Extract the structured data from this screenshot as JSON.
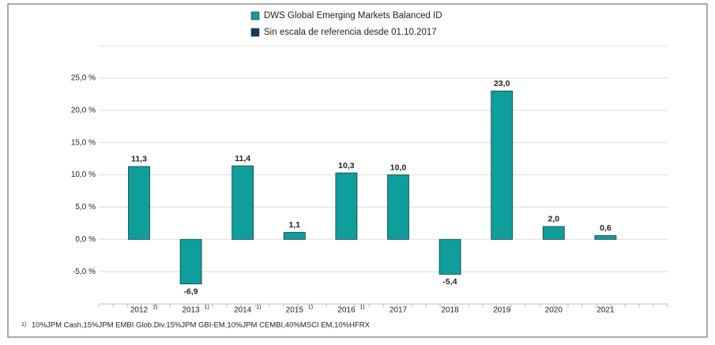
{
  "chart_data": {
    "type": "bar",
    "categories": [
      "2012",
      "2013",
      "2014",
      "2015",
      "2016",
      "2017",
      "2018",
      "2019",
      "2020",
      "2021"
    ],
    "category_notes": [
      "1)",
      "1)",
      "1)",
      "1)",
      "1)",
      null,
      null,
      null,
      null,
      null
    ],
    "series": [
      {
        "name": "DWS Global Emerging Markets Balanced  ID",
        "color": "#0e9e9c",
        "values": [
          11.3,
          -6.9,
          11.4,
          1.1,
          10.3,
          10.0,
          -5.4,
          23.0,
          2.0,
          0.6
        ],
        "value_labels": [
          "11,3",
          "-6,9",
          "11,4",
          "1,1",
          "10,3",
          "10,0",
          "-5,4",
          "23,0",
          "2,0",
          "0,6"
        ]
      },
      {
        "name": "Sin escala de referencia desde 01.10.2017",
        "color": "#123a5e",
        "values": [
          null,
          null,
          null,
          null,
          null,
          null,
          null,
          null,
          null,
          null
        ]
      }
    ],
    "ylim": [
      -10,
      30
    ],
    "yticks": [
      {
        "value": -5,
        "label": "-5,0 %"
      },
      {
        "value": 0,
        "label": "0,0 %"
      },
      {
        "value": 5,
        "label": "5,0 %"
      },
      {
        "value": 10,
        "label": "10,0 %"
      },
      {
        "value": 15,
        "label": "15,0 %"
      },
      {
        "value": 20,
        "label": "20,0 %"
      },
      {
        "value": 25,
        "label": "25,0 %"
      }
    ],
    "grid": true,
    "footnote": {
      "marker": "1)",
      "text": "10%JPM Cash,15%JPM EMBI Glob.Div.15%JPM GBI-EM,10%JPM CEMBI,40%MSCI EM,10%HFRX"
    }
  }
}
